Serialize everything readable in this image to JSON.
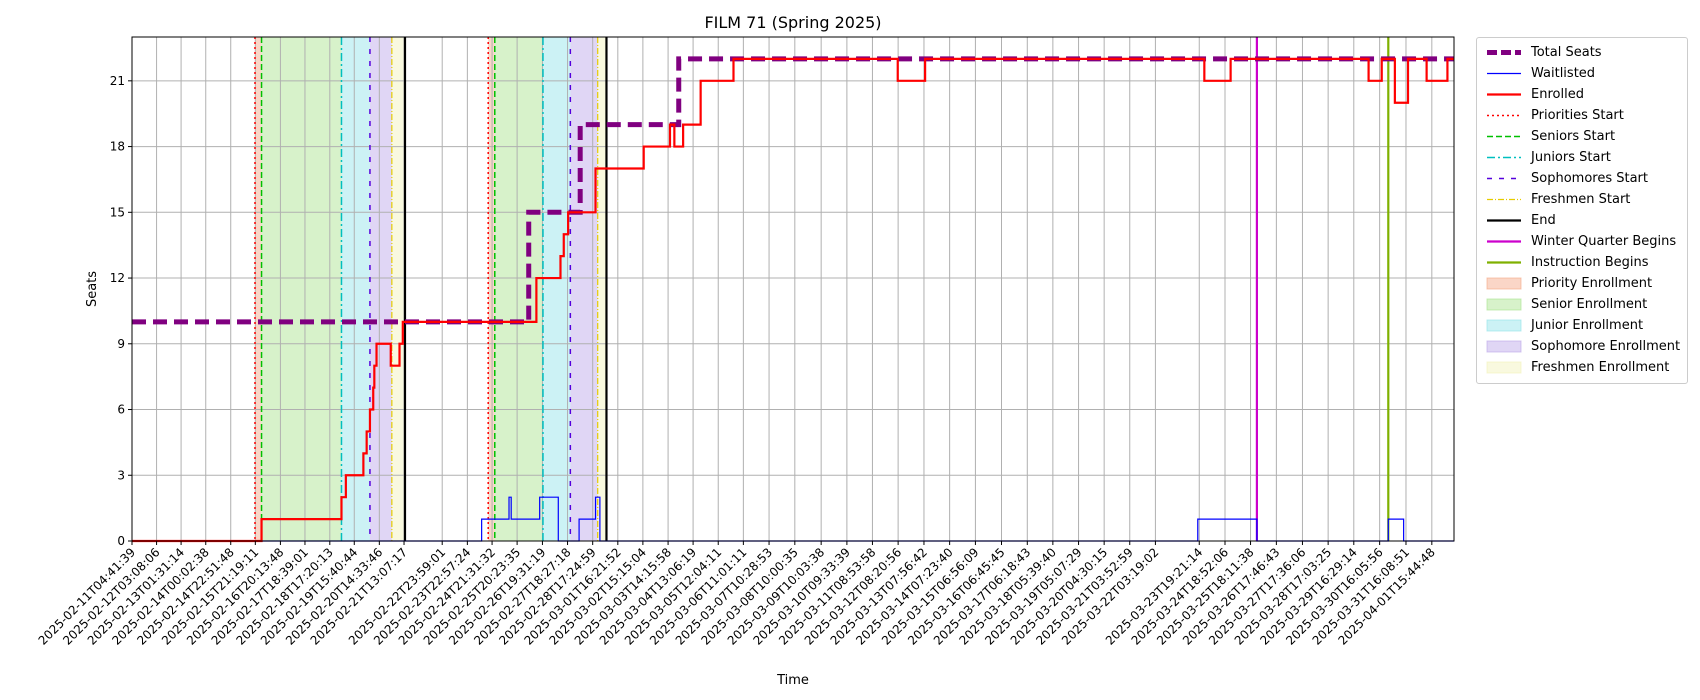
{
  "chart_data": {
    "type": "line",
    "title": "FILM 71 (Spring 2025)",
    "xlabel": "Time",
    "ylabel": "Seats",
    "ylim": [
      0,
      23
    ],
    "xlim": [
      "2025-02-11T04:41:39",
      "2025-04-02T12:00:00"
    ],
    "yticks": [
      0,
      3,
      6,
      9,
      12,
      15,
      18,
      21
    ],
    "grid": true,
    "legend_position": "outside-right",
    "xtick_labels": [
      "2025-02-11T04:41:39",
      "2025-02-12T03:08:06",
      "2025-02-13T01:31:14",
      "2025-02-14T00:02:38",
      "2025-02-14T22:51:48",
      "2025-02-15T21:19:11",
      "2025-02-16T20:13:48",
      "2025-02-17T18:39:01",
      "2025-02-18T17:20:13",
      "2025-02-19T15:40:44",
      "2025-02-20T14:33:46",
      "2025-02-21T13:07:17",
      "2025-02-22T23:59:01",
      "2025-02-23T22:57:24",
      "2025-02-24T21:31:32",
      "2025-02-25T20:23:35",
      "2025-02-26T19:31:19",
      "2025-02-27T18:27:18",
      "2025-02-28T17:24:59",
      "2025-03-01T16:21:52",
      "2025-03-02T15:15:04",
      "2025-03-03T14:15:58",
      "2025-03-04T13:06:19",
      "2025-03-05T12:04:11",
      "2025-03-06T11:01:11",
      "2025-03-07T10:28:53",
      "2025-03-08T10:00:35",
      "2025-03-09T10:03:38",
      "2025-03-10T09:33:39",
      "2025-03-11T08:53:58",
      "2025-03-12T08:20:56",
      "2025-03-13T07:56:42",
      "2025-03-14T07:23:40",
      "2025-03-15T06:56:09",
      "2025-03-16T06:45:45",
      "2025-03-17T06:18:43",
      "2025-03-18T05:39:40",
      "2025-03-19T05:07:29",
      "2025-03-20T04:30:15",
      "2025-03-21T03:52:59",
      "2025-03-22T03:19:02",
      "2025-03-23T19:21:14",
      "2025-03-24T18:52:06",
      "2025-03-25T18:11:38",
      "2025-03-26T17:46:43",
      "2025-03-27T17:36:06",
      "2025-03-28T17:03:25",
      "2025-03-29T16:29:14",
      "2025-03-30T16:05:56",
      "2025-03-31T16:08:51",
      "2025-04-01T15:44:48"
    ],
    "series": [
      {
        "name": "Total Seats",
        "color": "#800080",
        "style": "thick-dashed",
        "points": [
          [
            "2025-02-11T04:41:39",
            10
          ],
          [
            "2025-02-26T07:00:00",
            10
          ],
          [
            "2025-02-26T07:00:00",
            15
          ],
          [
            "2025-02-28T06:00:00",
            15
          ],
          [
            "2025-02-28T06:00:00",
            19
          ],
          [
            "2025-03-04T00:00:00",
            19
          ],
          [
            "2025-03-04T00:00:00",
            22
          ],
          [
            "2025-04-02T12:00:00",
            22
          ]
        ]
      },
      {
        "name": "Waitlisted",
        "color": "#0000ff",
        "style": "solid-thin",
        "points": [
          [
            "2025-02-11T04:41:39",
            0
          ],
          [
            "2025-02-24T12:00:00",
            0
          ],
          [
            "2025-02-24T12:00:00",
            1
          ],
          [
            "2025-02-25T13:00:00",
            1
          ],
          [
            "2025-02-25T13:00:00",
            2
          ],
          [
            "2025-02-25T15:00:00",
            2
          ],
          [
            "2025-02-25T15:00:00",
            1
          ],
          [
            "2025-02-26T17:00:00",
            1
          ],
          [
            "2025-02-26T17:00:00",
            2
          ],
          [
            "2025-02-27T10:00:00",
            2
          ],
          [
            "2025-02-27T10:00:00",
            0
          ],
          [
            "2025-02-28T05:00:00",
            0
          ],
          [
            "2025-02-28T05:00:00",
            1
          ],
          [
            "2025-02-28T20:00:00",
            1
          ],
          [
            "2025-02-28T20:00:00",
            2
          ],
          [
            "2025-03-01T00:00:00",
            2
          ],
          [
            "2025-03-01T00:00:00",
            0
          ],
          [
            "2025-03-23T18:00:00",
            0
          ],
          [
            "2025-03-23T18:00:00",
            1
          ],
          [
            "2025-03-26T00:00:00",
            1
          ],
          [
            "2025-03-26T00:00:00",
            0
          ],
          [
            "2025-03-31T00:00:00",
            0
          ],
          [
            "2025-03-31T00:00:00",
            1
          ],
          [
            "2025-03-31T14:00:00",
            1
          ],
          [
            "2025-03-31T14:00:00",
            0
          ],
          [
            "2025-04-02T12:00:00",
            0
          ]
        ]
      },
      {
        "name": "Enrolled",
        "color": "#ff0000",
        "style": "solid",
        "points": [
          [
            "2025-02-11T04:41:39",
            0
          ],
          [
            "2025-02-16T03:00:00",
            0
          ],
          [
            "2025-02-16T03:00:00",
            1
          ],
          [
            "2025-02-19T04:00:00",
            1
          ],
          [
            "2025-02-19T04:00:00",
            2
          ],
          [
            "2025-02-19T08:00:00",
            2
          ],
          [
            "2025-02-19T08:00:00",
            3
          ],
          [
            "2025-02-20T00:00:00",
            3
          ],
          [
            "2025-02-20T00:00:00",
            4
          ],
          [
            "2025-02-20T03:00:00",
            4
          ],
          [
            "2025-02-20T03:00:00",
            5
          ],
          [
            "2025-02-20T06:00:00",
            5
          ],
          [
            "2025-02-20T06:00:00",
            6
          ],
          [
            "2025-02-20T09:00:00",
            6
          ],
          [
            "2025-02-20T09:00:00",
            7
          ],
          [
            "2025-02-20T10:00:00",
            7
          ],
          [
            "2025-02-20T10:00:00",
            8
          ],
          [
            "2025-02-20T12:00:00",
            8
          ],
          [
            "2025-02-20T12:00:00",
            9
          ],
          [
            "2025-02-21T01:00:00",
            9
          ],
          [
            "2025-02-21T01:00:00",
            8
          ],
          [
            "2025-02-21T09:00:00",
            8
          ],
          [
            "2025-02-21T09:00:00",
            9
          ],
          [
            "2025-02-21T12:00:00",
            9
          ],
          [
            "2025-02-21T12:00:00",
            10
          ],
          [
            "2025-02-26T14:00:00",
            10
          ],
          [
            "2025-02-26T14:00:00",
            12
          ],
          [
            "2025-02-27T12:00:00",
            12
          ],
          [
            "2025-02-27T12:00:00",
            13
          ],
          [
            "2025-02-27T15:00:00",
            13
          ],
          [
            "2025-02-27T15:00:00",
            14
          ],
          [
            "2025-02-27T19:00:00",
            14
          ],
          [
            "2025-02-27T19:00:00",
            15
          ],
          [
            "2025-02-28T20:00:00",
            15
          ],
          [
            "2025-02-28T20:00:00",
            17
          ],
          [
            "2025-03-02T16:00:00",
            17
          ],
          [
            "2025-03-02T16:00:00",
            18
          ],
          [
            "2025-03-03T16:00:00",
            18
          ],
          [
            "2025-03-03T16:00:00",
            19
          ],
          [
            "2025-03-03T20:00:00",
            19
          ],
          [
            "2025-03-03T20:00:00",
            18
          ],
          [
            "2025-03-04T04:00:00",
            18
          ],
          [
            "2025-03-04T04:00:00",
            19
          ],
          [
            "2025-03-04T20:00:00",
            19
          ],
          [
            "2025-03-04T20:00:00",
            21
          ],
          [
            "2025-03-06T02:00:00",
            21
          ],
          [
            "2025-03-06T02:00:00",
            22
          ],
          [
            "2025-03-12T08:00:00",
            22
          ],
          [
            "2025-03-12T08:00:00",
            21
          ],
          [
            "2025-03-13T09:00:00",
            21
          ],
          [
            "2025-03-13T09:00:00",
            22
          ],
          [
            "2025-03-24T00:00:00",
            22
          ],
          [
            "2025-03-24T00:00:00",
            21
          ],
          [
            "2025-03-25T00:00:00",
            21
          ],
          [
            "2025-03-25T00:00:00",
            22
          ],
          [
            "2025-03-30T06:00:00",
            22
          ],
          [
            "2025-03-30T06:00:00",
            21
          ],
          [
            "2025-03-30T18:00:00",
            21
          ],
          [
            "2025-03-30T18:00:00",
            22
          ],
          [
            "2025-03-31T06:00:00",
            22
          ],
          [
            "2025-03-31T06:00:00",
            20
          ],
          [
            "2025-03-31T18:00:00",
            20
          ],
          [
            "2025-03-31T18:00:00",
            22
          ],
          [
            "2025-04-01T11:00:00",
            22
          ],
          [
            "2025-04-01T11:00:00",
            21
          ],
          [
            "2025-04-02T06:00:00",
            21
          ],
          [
            "2025-04-02T06:00:00",
            22
          ],
          [
            "2025-04-02T12:00:00",
            22
          ]
        ]
      }
    ],
    "vlines": [
      {
        "name": "Priorities Start",
        "color": "#ff0000",
        "style": "dotted",
        "x": [
          "2025-02-15T21:00:00",
          "2025-02-24T18:00:00"
        ]
      },
      {
        "name": "Seniors Start",
        "color": "#00c000",
        "style": "dashed",
        "x": [
          "2025-02-16T03:00:00",
          "2025-02-25T00:00:00"
        ]
      },
      {
        "name": "Juniors Start",
        "color": "#00bfbf",
        "style": "dashdot",
        "x": [
          "2025-02-19T04:00:00",
          "2025-02-26T20:00:00"
        ]
      },
      {
        "name": "Sophomores Start",
        "color": "#5500dd",
        "style": "loosedash",
        "x": [
          "2025-02-20T06:00:00",
          "2025-02-27T21:00:00"
        ]
      },
      {
        "name": "Freshmen Start",
        "color": "#e6cc00",
        "style": "dashdot-thin",
        "x": [
          "2025-02-21T02:00:00",
          "2025-02-28T22:00:00"
        ]
      },
      {
        "name": "End",
        "color": "#000000",
        "style": "solid",
        "x": [
          "2025-02-21T14:00:00",
          "2025-02-29T06:00:00"
        ]
      },
      {
        "name": "Winter Quarter Begins",
        "color": "#cc00cc",
        "style": "solid",
        "x": [
          "2025-03-26T00:00:00"
        ]
      },
      {
        "name": "Instruction Begins",
        "color": "#7fb000",
        "style": "solid",
        "x": [
          "2025-03-31T00:00:00"
        ]
      }
    ],
    "spans": [
      {
        "name": "Priority Enrollment",
        "color": "#f4a582",
        "ranges": [
          [
            "2025-02-15T21:00:00",
            "2025-02-16T03:00:00"
          ],
          [
            "2025-02-24T18:00:00",
            "2025-02-25T00:00:00"
          ]
        ]
      },
      {
        "name": "Senior Enrollment",
        "color": "#a6e38a",
        "ranges": [
          [
            "2025-02-16T03:00:00",
            "2025-02-19T04:00:00"
          ],
          [
            "2025-02-25T00:00:00",
            "2025-02-26T20:00:00"
          ]
        ]
      },
      {
        "name": "Junior Enrollment",
        "color": "#8ee3e8",
        "ranges": [
          [
            "2025-02-19T04:00:00",
            "2025-02-20T06:00:00"
          ],
          [
            "2025-02-26T20:00:00",
            "2025-02-27T21:00:00"
          ]
        ]
      },
      {
        "name": "Sophomore Enrollment",
        "color": "#bba4e8",
        "ranges": [
          [
            "2025-02-20T06:00:00",
            "2025-02-21T02:00:00"
          ],
          [
            "2025-02-27T21:00:00",
            "2025-02-28T22:00:00"
          ]
        ]
      },
      {
        "name": "Freshmen Enrollment",
        "color": "#f2f2b8",
        "ranges": [
          [
            "2025-02-21T02:00:00",
            "2025-02-21T14:00:00"
          ],
          [
            "2025-02-28T22:00:00",
            "2025-02-29T06:00:00"
          ]
        ]
      }
    ],
    "legend": [
      {
        "label": "Total Seats",
        "kind": "line",
        "color": "#800080",
        "style": "thick-dashed"
      },
      {
        "label": "Waitlisted",
        "kind": "line",
        "color": "#0000ff",
        "style": "solid-thin"
      },
      {
        "label": "Enrolled",
        "kind": "line",
        "color": "#ff0000",
        "style": "solid"
      },
      {
        "label": "Priorities Start",
        "kind": "line",
        "color": "#ff0000",
        "style": "dotted"
      },
      {
        "label": "Seniors Start",
        "kind": "line",
        "color": "#00c000",
        "style": "dashed"
      },
      {
        "label": "Juniors Start",
        "kind": "line",
        "color": "#00bfbf",
        "style": "dashdot"
      },
      {
        "label": "Sophomores Start",
        "kind": "line",
        "color": "#5500dd",
        "style": "loosedash"
      },
      {
        "label": "Freshmen Start",
        "kind": "line",
        "color": "#e6cc00",
        "style": "dashdot-thin"
      },
      {
        "label": "End",
        "kind": "line",
        "color": "#000000",
        "style": "solid"
      },
      {
        "label": "Winter Quarter Begins",
        "kind": "line",
        "color": "#cc00cc",
        "style": "solid"
      },
      {
        "label": "Instruction Begins",
        "kind": "line",
        "color": "#7fb000",
        "style": "solid"
      },
      {
        "label": "Priority Enrollment",
        "kind": "patch",
        "color": "#f4a582"
      },
      {
        "label": "Senior Enrollment",
        "kind": "patch",
        "color": "#a6e38a"
      },
      {
        "label": "Junior Enrollment",
        "kind": "patch",
        "color": "#8ee3e8"
      },
      {
        "label": "Sophomore Enrollment",
        "kind": "patch",
        "color": "#bba4e8"
      },
      {
        "label": "Freshmen Enrollment",
        "kind": "patch",
        "color": "#f2f2b8"
      }
    ]
  }
}
